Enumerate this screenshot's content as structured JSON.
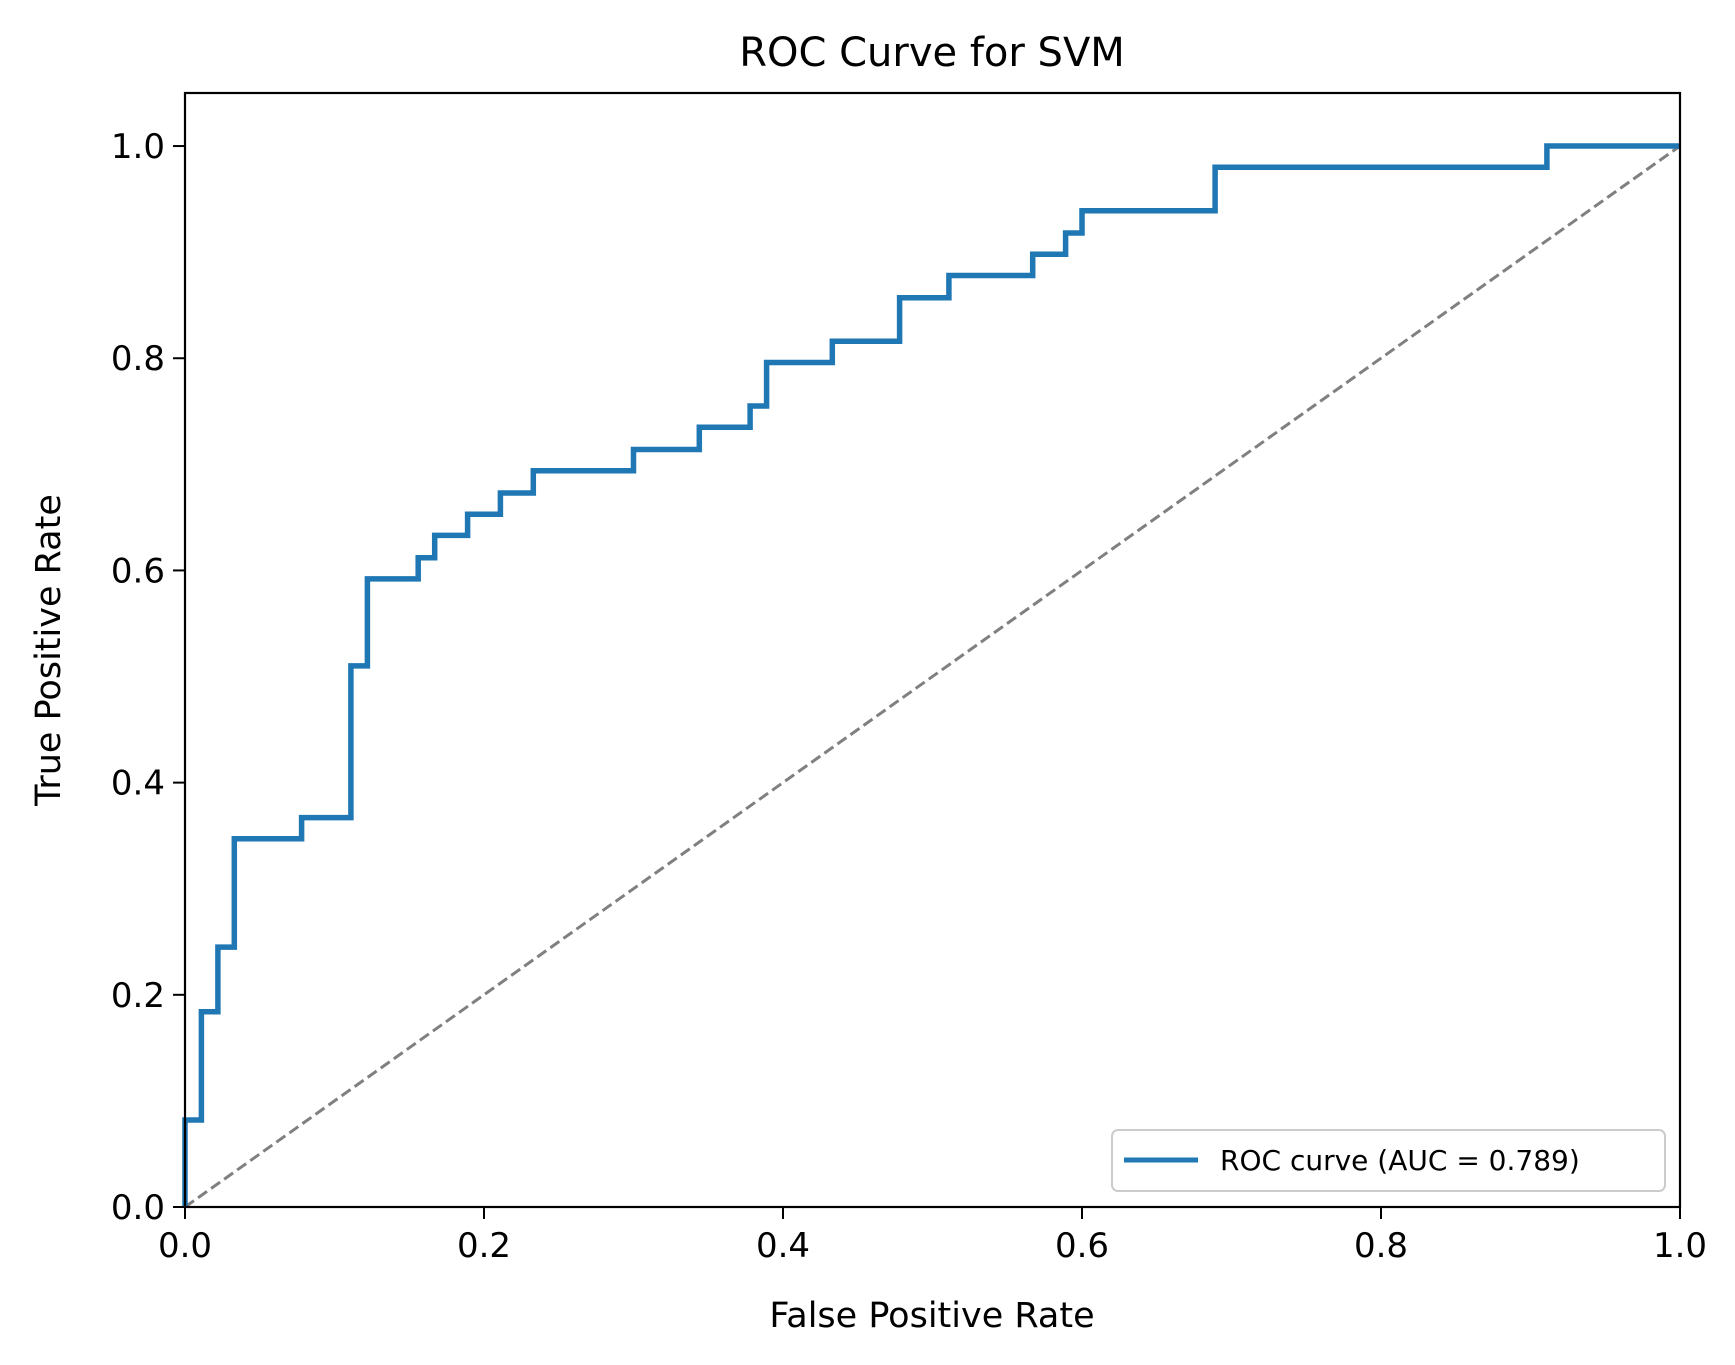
{
  "chart_data": {
    "type": "line",
    "title": "ROC Curve for SVM",
    "xlabel": "False Positive Rate",
    "ylabel": "True Positive Rate",
    "xlim": [
      0.0,
      1.0
    ],
    "ylim": [
      0.0,
      1.05
    ],
    "xticks": [
      0.0,
      0.2,
      0.4,
      0.6,
      0.8,
      1.0
    ],
    "yticks": [
      0.0,
      0.2,
      0.4,
      0.6,
      0.8,
      1.0
    ],
    "xtick_labels": [
      "0.0",
      "0.2",
      "0.4",
      "0.6",
      "0.8",
      "1.0"
    ],
    "ytick_labels": [
      "0.0",
      "0.2",
      "0.4",
      "0.6",
      "0.8",
      "1.0"
    ],
    "grid": false,
    "legend_position": "lower-right",
    "series": [
      {
        "name": "ROC curve (AUC = 0.789)",
        "color": "#1f77b4",
        "style": "step",
        "x": [
          0.0,
          0.0,
          0.011,
          0.011,
          0.022,
          0.022,
          0.033,
          0.033,
          0.078,
          0.078,
          0.111,
          0.111,
          0.122,
          0.122,
          0.156,
          0.156,
          0.167,
          0.167,
          0.189,
          0.189,
          0.211,
          0.211,
          0.233,
          0.233,
          0.3,
          0.3,
          0.344,
          0.344,
          0.378,
          0.378,
          0.389,
          0.389,
          0.433,
          0.433,
          0.478,
          0.478,
          0.511,
          0.511,
          0.567,
          0.567,
          0.589,
          0.589,
          0.6,
          0.6,
          0.689,
          0.689,
          0.911,
          0.911,
          1.0
        ],
        "y": [
          0.0,
          0.082,
          0.082,
          0.184,
          0.184,
          0.245,
          0.245,
          0.347,
          0.347,
          0.367,
          0.367,
          0.51,
          0.51,
          0.592,
          0.592,
          0.612,
          0.612,
          0.633,
          0.633,
          0.653,
          0.653,
          0.673,
          0.673,
          0.694,
          0.694,
          0.714,
          0.714,
          0.735,
          0.735,
          0.755,
          0.755,
          0.796,
          0.796,
          0.816,
          0.816,
          0.857,
          0.857,
          0.878,
          0.878,
          0.898,
          0.898,
          0.918,
          0.918,
          0.939,
          0.939,
          0.98,
          0.98,
          1.0,
          1.0
        ]
      },
      {
        "name": "",
        "color": "#808080",
        "style": "dashed",
        "x": [
          0.0,
          1.0
        ],
        "y": [
          0.0,
          1.0
        ]
      }
    ]
  }
}
